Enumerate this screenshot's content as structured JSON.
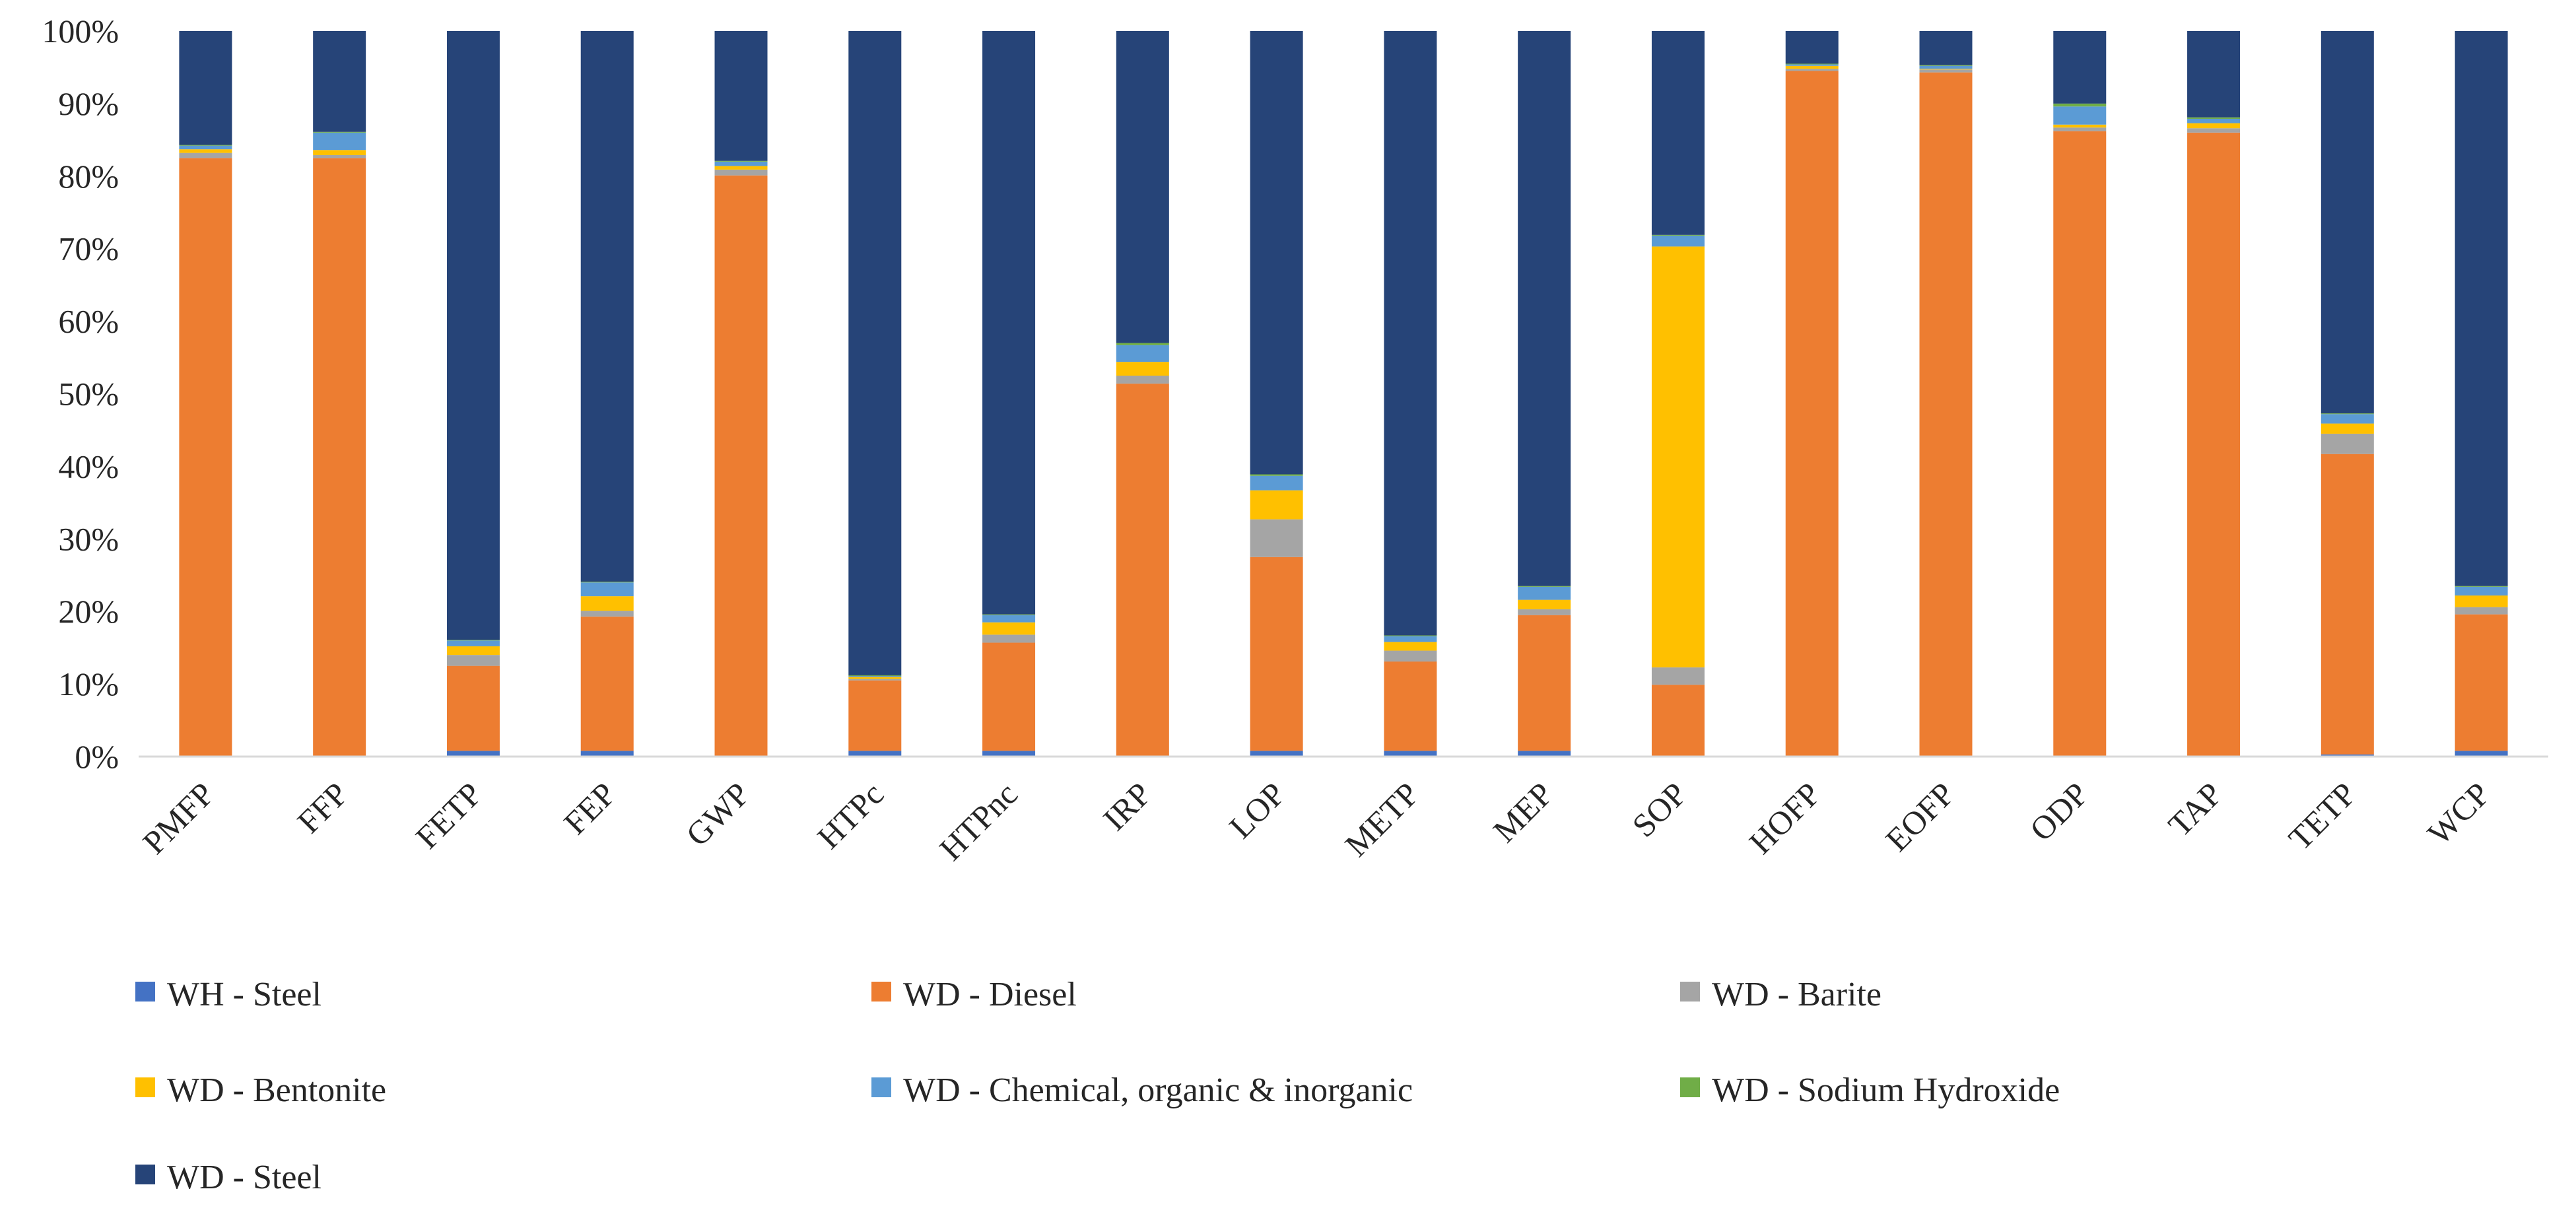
{
  "chart_data": {
    "type": "bar",
    "stacked": true,
    "percent": true,
    "grid": false,
    "legend_position": "bottom",
    "ylim": [
      0,
      100
    ],
    "y_ticks": [
      "0%",
      "10%",
      "20%",
      "30%",
      "40%",
      "50%",
      "60%",
      "70%",
      "80%",
      "90%",
      "100%"
    ],
    "categories": [
      "PMFP",
      "FFP",
      "FETP",
      "FEP",
      "GWP",
      "HTPc",
      "HTPnc",
      "IRP",
      "LOP",
      "METP",
      "MEP",
      "SOP",
      "HOFP",
      "EOFP",
      "ODP",
      "TAP",
      "TETP",
      "WCP"
    ],
    "series": [
      {
        "name": "WH - Steel",
        "color": "#4472C4",
        "values": [
          0.1,
          0.1,
          0.8,
          0.8,
          0.1,
          0.8,
          0.8,
          0.1,
          0.8,
          0.8,
          0.8,
          0.1,
          0.1,
          0.1,
          0.1,
          0.1,
          0.3,
          0.8
        ]
      },
      {
        "name": "WD - Diesel",
        "color": "#ED7D31",
        "values": [
          82.4,
          82.4,
          11.7,
          18.5,
          80.0,
          9.7,
          14.9,
          51.3,
          26.7,
          12.3,
          18.7,
          9.8,
          94.4,
          94.2,
          86.1,
          85.9,
          41.4,
          18.8
        ]
      },
      {
        "name": "WD - Barite",
        "color": "#A5A5A5",
        "values": [
          0.7,
          0.4,
          1.5,
          0.8,
          0.8,
          0.2,
          1.1,
          1.1,
          5.2,
          1.5,
          0.8,
          2.4,
          0.3,
          0.4,
          0.5,
          0.6,
          2.8,
          1.0
        ]
      },
      {
        "name": "WD - Bentonite",
        "color": "#FFC000",
        "values": [
          0.5,
          0.7,
          1.2,
          2.0,
          0.5,
          0.3,
          1.7,
          1.9,
          4.0,
          1.2,
          1.3,
          58.0,
          0.4,
          0.1,
          0.4,
          0.7,
          1.4,
          1.6
        ]
      },
      {
        "name": "WD - Chemical, organic & inorganic",
        "color": "#5B9BD5",
        "values": [
          0.5,
          2.4,
          0.8,
          1.9,
          0.6,
          0.1,
          1.0,
          2.3,
          2.0,
          0.8,
          1.8,
          1.5,
          0.2,
          0.4,
          2.5,
          0.6,
          1.3,
          1.2
        ]
      },
      {
        "name": "WD - Sodium Hydroxide",
        "color": "#70AD47",
        "values": [
          0.1,
          0.1,
          0.1,
          0.1,
          0.1,
          0.1,
          0.1,
          0.3,
          0.2,
          0.1,
          0.1,
          0.1,
          0.1,
          0.1,
          0.4,
          0.2,
          0.1,
          0.1
        ]
      },
      {
        "name": "WD - Steel",
        "color": "#264478",
        "values": [
          15.7,
          13.9,
          83.9,
          75.9,
          17.9,
          88.8,
          80.4,
          43.0,
          61.1,
          83.3,
          76.5,
          28.1,
          4.5,
          4.7,
          10.0,
          11.9,
          52.7,
          76.5
        ]
      }
    ]
  }
}
